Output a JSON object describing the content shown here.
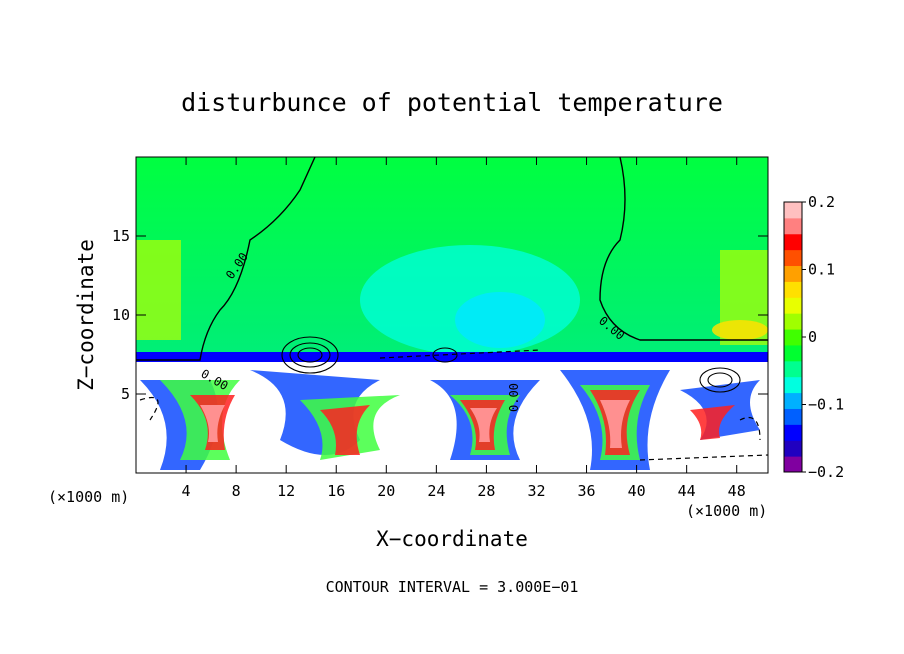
{
  "title": "disturbunce of potential temperature",
  "xlabel": "X−coordinate",
  "ylabel": "Z−coordinate",
  "x_unit_label": "(×1000 m)",
  "x_unit_label_right": "(×1000 m)",
  "contour_interval_text": "CONTOUR INTERVAL = 3.000E−01",
  "contour_label_text": "0.00",
  "chart_data": {
    "type": "heatmap",
    "title": "disturbunce of potential temperature",
    "xlabel": "X−coordinate",
    "ylabel": "Z−coordinate",
    "x_unit": "(×1000 m)",
    "xlim": [
      0,
      50.5
    ],
    "ylim": [
      0,
      20
    ],
    "xticks": [
      4,
      8,
      12,
      16,
      20,
      24,
      28,
      32,
      36,
      40,
      44,
      48
    ],
    "yticks": [
      5,
      10,
      15
    ],
    "colorbar": {
      "range": [
        -0.2,
        0.2
      ],
      "ticks": [
        0.2,
        0.1,
        0,
        -0.1,
        -0.2
      ],
      "tick_labels": [
        "0.2",
        "0.1",
        "0",
        "−0.1",
        "−0.2"
      ],
      "colors": [
        "#8000a0",
        "#2000c0",
        "#0000ff",
        "#0060ff",
        "#00b0ff",
        "#00ffe0",
        "#00ff90",
        "#00ff30",
        "#40ff00",
        "#a0ff00",
        "#e8ff00",
        "#ffe000",
        "#ffa000",
        "#ff5000",
        "#ff0000",
        "#ff8080",
        "#ffc0c0"
      ]
    },
    "contour_interval": 0.3,
    "contour_label": "0.00"
  }
}
